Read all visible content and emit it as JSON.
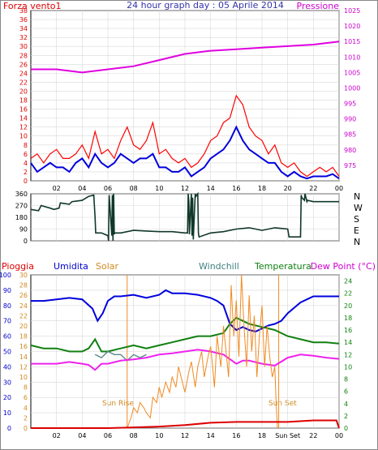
{
  "header": {
    "left_label": "Forza vento1",
    "title": "24 hour graph day : 05 Aprile 2014",
    "right_label": "Pressione"
  },
  "direction_labels": [
    "N",
    "W",
    "S",
    "E",
    "N"
  ],
  "bottom_header": {
    "pioggia": "Pioggia",
    "umidita": "Umidita",
    "solar": "Solar",
    "windchill": "Windchill",
    "temperatura": "Temperatura",
    "dewpoint": "Dew Point (°C)"
  },
  "annotations": {
    "sun_rise": "Sun Rise",
    "sun_set": "Sun Set"
  },
  "colors": {
    "wind_gust": "#ff0000",
    "wind_avg": "#0000dd",
    "pressure": "#e000e0",
    "direction": "#103828",
    "humidity": "#0000dd",
    "solar": "#f08a20",
    "temperature": "#108010",
    "windchill": "#5a8a8a",
    "dewpoint": "#ee22ee",
    "rain": "#dd0000",
    "grid": "#d8d8d8"
  },
  "chart_data": [
    {
      "type": "line",
      "title": "24 hour graph day : 05 Aprile 2014",
      "x_ticks": [
        "02",
        "04",
        "06",
        "08",
        "10",
        "12",
        "14",
        "16",
        "18",
        "20",
        "22",
        "00"
      ],
      "xlim": [
        0,
        24
      ],
      "left_axis": {
        "label": "Forza vento1",
        "ylim": [
          0,
          38
        ],
        "ticks": [
          0,
          2,
          4,
          6,
          8,
          10,
          12,
          14,
          16,
          18,
          20,
          22,
          24,
          26,
          28,
          30,
          32,
          34,
          36,
          38
        ]
      },
      "right_axis": {
        "label": "Pressione",
        "ylim": [
          970,
          1025
        ],
        "ticks": [
          975,
          980,
          985,
          990,
          995,
          1000,
          1005,
          1010,
          1015,
          1020,
          1025
        ]
      },
      "series": [
        {
          "axis": "left",
          "x": [
            0,
            0.5,
            1,
            1.5,
            2,
            2.5,
            3,
            3.5,
            4,
            4.5,
            5,
            5.5,
            6,
            6.5,
            7,
            7.5,
            8,
            8.5,
            9,
            9.5,
            10,
            10.5,
            11,
            11.5,
            12,
            12.5,
            13,
            13.5,
            14,
            14.5,
            15,
            15.5,
            16,
            16.5,
            17,
            17.5,
            18,
            18.5,
            19,
            19.5,
            20,
            20.5,
            21,
            21.5,
            22,
            22.5,
            23,
            23.5,
            24
          ],
          "values": [
            5,
            6,
            4,
            6,
            7,
            5,
            5,
            6,
            8,
            5,
            11,
            6,
            7,
            5,
            9,
            12,
            8,
            7,
            9,
            13,
            6,
            7,
            5,
            4,
            5,
            3,
            4,
            6,
            9,
            10,
            13,
            14,
            19,
            17,
            12,
            10,
            9,
            6,
            8,
            4,
            3,
            4,
            2,
            1,
            2,
            3,
            2,
            3,
            1
          ]
        },
        {
          "axis": "left",
          "x": [
            0,
            0.5,
            1,
            1.5,
            2,
            2.5,
            3,
            3.5,
            4,
            4.5,
            5,
            5.5,
            6,
            6.5,
            7,
            7.5,
            8,
            8.5,
            9,
            9.5,
            10,
            10.5,
            11,
            11.5,
            12,
            12.5,
            13,
            13.5,
            14,
            14.5,
            15,
            15.5,
            16,
            16.5,
            17,
            17.5,
            18,
            18.5,
            19,
            19.5,
            20,
            20.5,
            21,
            21.5,
            22,
            22.5,
            23,
            23.5,
            24
          ],
          "values": [
            4,
            2,
            3,
            4,
            3,
            3,
            2,
            4,
            5,
            3,
            6,
            4,
            3,
            4,
            6,
            5,
            4,
            5,
            5,
            6,
            3,
            3,
            2,
            2,
            3,
            1,
            2,
            3,
            5,
            6,
            7,
            9,
            12,
            9,
            7,
            6,
            5,
            4,
            4,
            2,
            1,
            2,
            1,
            0.5,
            1,
            1,
            1,
            1.5,
            0.5
          ]
        },
        {
          "axis": "right",
          "x": [
            0,
            2,
            4,
            6,
            8,
            10,
            12,
            14,
            16,
            18,
            20,
            22,
            24
          ],
          "values": [
            1006,
            1006,
            1005,
            1006,
            1007,
            1009,
            1011,
            1012,
            1012.5,
            1013,
            1013.5,
            1014,
            1015
          ]
        }
      ]
    },
    {
      "type": "line",
      "title": "",
      "x_ticks": [
        "02",
        "04",
        "06",
        "08",
        "10",
        "12",
        "14",
        "16",
        "18",
        "20",
        "22",
        "00"
      ],
      "xlim": [
        0,
        24
      ],
      "ylim": [
        0,
        360
      ],
      "y_ticks": [
        0,
        90,
        180,
        270,
        360
      ],
      "series": [
        {
          "x": [
            0,
            0.6,
            0.8,
            1.5,
            1.8,
            2.2,
            2.3,
            3,
            3.2,
            4,
            4.5,
            4.9,
            5,
            5.05,
            5.5,
            6,
            6.05,
            6.1,
            6.3,
            6.35,
            6.4,
            6.45,
            6.5,
            6.55,
            7,
            8,
            9,
            10,
            11,
            12,
            12.2,
            12.25,
            12.3,
            12.35,
            12.5,
            12.55,
            12.6,
            12.65,
            12.8,
            12.85,
            13,
            13.05,
            13.1,
            14,
            15,
            16,
            17,
            18,
            19,
            20,
            20.05,
            20.1,
            21,
            21.05,
            21.1,
            21.3,
            21.35,
            21.5,
            21.55,
            22,
            23,
            24
          ],
          "values": [
            240,
            230,
            270,
            250,
            240,
            250,
            290,
            280,
            300,
            310,
            340,
            350,
            180,
            60,
            60,
            40,
            0,
            350,
            40,
            350,
            0,
            360,
            50,
            60,
            60,
            80,
            75,
            70,
            70,
            60,
            60,
            360,
            300,
            50,
            360,
            40,
            330,
            10,
            360,
            340,
            360,
            60,
            30,
            60,
            70,
            90,
            100,
            80,
            100,
            90,
            60,
            30,
            30,
            350,
            330,
            310,
            360,
            300,
            310,
            300,
            300,
            300
          ]
        }
      ]
    },
    {
      "type": "line",
      "title": "",
      "x_ticks": [
        "02",
        "04",
        "06",
        "08",
        "10",
        "12",
        "14",
        "16",
        "18",
        "Sun Set",
        "22",
        "00"
      ],
      "xlim": [
        0,
        24
      ],
      "left_axis": {
        "label": "Pioggia / Umidita",
        "ylim": [
          0,
          100
        ],
        "ticks": [
          0,
          10,
          20,
          30,
          40,
          50,
          60,
          70,
          80,
          90,
          100
        ]
      },
      "solar_axis": {
        "label": "Solar",
        "ylim": [
          0,
          30
        ],
        "ticks": [
          0,
          2,
          4,
          6,
          8,
          10,
          12,
          14,
          16,
          18,
          20,
          22,
          24,
          26,
          28,
          30
        ]
      },
      "right_axis": {
        "label": "Temperatura / Dew Point (°C)",
        "ylim": [
          0,
          25
        ],
        "ticks": [
          0,
          2,
          4,
          6,
          8,
          10,
          12,
          14,
          16,
          18,
          20,
          22,
          24
        ]
      },
      "series": [
        {
          "name": "Umidita",
          "axis": "left",
          "x": [
            0,
            1,
            2,
            3,
            4,
            4.8,
            5.2,
            5.6,
            6,
            6.5,
            7,
            8,
            9,
            10,
            10.5,
            11,
            12,
            13,
            14,
            14.5,
            15,
            15.5,
            16,
            16.5,
            17,
            17.5,
            18,
            18.5,
            19,
            19.5,
            20,
            21,
            22,
            23,
            24
          ],
          "values": [
            83,
            83,
            84,
            85,
            84,
            78,
            70,
            75,
            83,
            86,
            86,
            87,
            85,
            87,
            90,
            88,
            88,
            87,
            85,
            83,
            80,
            68,
            64,
            66,
            64,
            63,
            65,
            67,
            68,
            70,
            75,
            82,
            86,
            86,
            86
          ]
        },
        {
          "name": "Temperatura",
          "axis": "right",
          "x": [
            0,
            1,
            2,
            3,
            4,
            4.5,
            5,
            5.5,
            6,
            7,
            8,
            9,
            10,
            11,
            12,
            13,
            14,
            15,
            15.5,
            16,
            16.5,
            17,
            18,
            19,
            20,
            21,
            22,
            23,
            24
          ],
          "values": [
            13.5,
            13,
            13,
            12.5,
            12.5,
            13,
            14.5,
            12.5,
            12.5,
            13,
            13.5,
            13,
            13.5,
            14,
            14.5,
            15,
            15,
            15.5,
            17,
            18,
            17.5,
            17,
            16.5,
            16,
            15,
            14.5,
            14,
            14,
            13.8
          ]
        },
        {
          "name": "Windchill",
          "axis": "right",
          "x": [
            5,
            5.5,
            6,
            6.5,
            7,
            7.5,
            8,
            8.5,
            9
          ],
          "values": [
            12,
            11.5,
            12.5,
            12,
            12,
            11,
            12,
            11.5,
            12
          ]
        },
        {
          "name": "Dew Point",
          "axis": "right",
          "x": [
            0,
            1,
            2,
            3,
            4,
            4.5,
            5,
            5.5,
            6,
            7,
            8,
            9,
            10,
            11,
            12,
            13,
            14,
            15,
            16,
            16.5,
            17,
            18,
            19,
            20,
            21,
            22,
            23,
            24
          ],
          "values": [
            10.5,
            10.5,
            10.5,
            10.8,
            10.5,
            10.3,
            9.5,
            10.5,
            10.5,
            11,
            11.2,
            11.5,
            12,
            12.2,
            12.5,
            12.8,
            12.5,
            12,
            10.5,
            11,
            11,
            10.5,
            10.2,
            11.5,
            12,
            11.8,
            11.5,
            11.3
          ]
        },
        {
          "name": "Solar",
          "axis": "solar",
          "x": [
            7.5,
            7.8,
            8,
            8.3,
            8.5,
            8.8,
            9,
            9.3,
            9.5,
            9.8,
            10,
            10.2,
            10.5,
            10.8,
            11,
            11.3,
            11.5,
            11.8,
            12,
            12.3,
            12.5,
            12.8,
            13,
            13.3,
            13.5,
            13.8,
            14,
            14.3,
            14.5,
            14.8,
            15,
            15.2,
            15.4,
            15.6,
            15.8,
            16,
            16.2,
            16.4,
            16.6,
            16.8,
            17,
            17.2,
            17.4,
            17.6,
            17.8,
            18,
            18.2,
            18.4,
            18.6,
            18.8,
            19,
            19.1,
            19.2
          ],
          "values": [
            0,
            2,
            4,
            3,
            5,
            4,
            3,
            2,
            6,
            5,
            8,
            6,
            9,
            7,
            10,
            8,
            12,
            9,
            7,
            11,
            13,
            8,
            12,
            15,
            10,
            14,
            16,
            8,
            18,
            12,
            20,
            15,
            10,
            28,
            18,
            25,
            14,
            30,
            20,
            12,
            26,
            15,
            22,
            10,
            18,
            24,
            12,
            20,
            14,
            10,
            12,
            5,
            0
          ]
        },
        {
          "name": "Pioggia",
          "axis": "left",
          "x": [
            0,
            4,
            6,
            8,
            10,
            12,
            14,
            16,
            18,
            20,
            22,
            23.8,
            24
          ],
          "values": [
            0,
            0,
            0,
            0.5,
            1,
            2,
            3.5,
            4,
            4,
            4,
            5,
            5,
            0
          ]
        }
      ]
    }
  ]
}
